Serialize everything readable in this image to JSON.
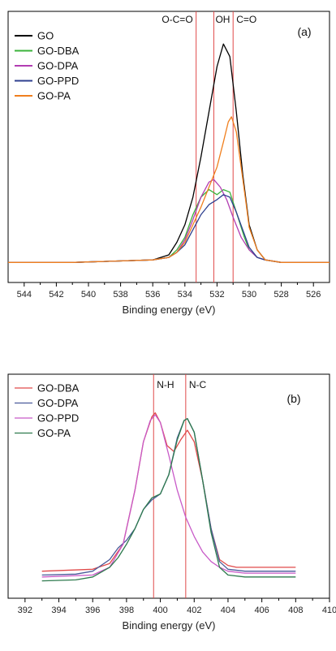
{
  "chart_data": [
    {
      "type": "line",
      "panel_label": "(a)",
      "xlabel": "Binding energy (eV)",
      "ylabel": "",
      "xlim": [
        545,
        525
      ],
      "ylim": [
        -0.08,
        1.0
      ],
      "x_reversed": true,
      "x_ticks": [
        "544",
        "542",
        "540",
        "538",
        "536",
        "534",
        "532",
        "530",
        "528",
        "526"
      ],
      "legend_position": "top-left",
      "reference_lines": [
        {
          "label": "O-C=O",
          "x": 533.3
        },
        {
          "label": "OH",
          "x": 532.2
        },
        {
          "label": "C=O",
          "x": 531.0
        }
      ],
      "series": [
        {
          "name": "GO",
          "color": "#000000",
          "points": [
            [
              545,
              0
            ],
            [
              541,
              0
            ],
            [
              536,
              0.01
            ],
            [
              535,
              0.03
            ],
            [
              534.5,
              0.08
            ],
            [
              534,
              0.15
            ],
            [
              533.5,
              0.26
            ],
            [
              533,
              0.42
            ],
            [
              532.5,
              0.6
            ],
            [
              532,
              0.78
            ],
            [
              531.6,
              0.87
            ],
            [
              531.2,
              0.82
            ],
            [
              530.8,
              0.6
            ],
            [
              530.4,
              0.35
            ],
            [
              530,
              0.15
            ],
            [
              529.5,
              0.05
            ],
            [
              529,
              0.01
            ],
            [
              528,
              0
            ],
            [
              525,
              0
            ]
          ]
        },
        {
          "name": "GO-DBA",
          "color": "#3bb33b",
          "points": [
            [
              545,
              0
            ],
            [
              541,
              0
            ],
            [
              536,
              0.01
            ],
            [
              535,
              0.02
            ],
            [
              534.5,
              0.05
            ],
            [
              534,
              0.1
            ],
            [
              533.5,
              0.19
            ],
            [
              533,
              0.26
            ],
            [
              532.5,
              0.29
            ],
            [
              532,
              0.27
            ],
            [
              531.6,
              0.29
            ],
            [
              531.2,
              0.28
            ],
            [
              530.8,
              0.2
            ],
            [
              530.3,
              0.1
            ],
            [
              530,
              0.05
            ],
            [
              529.5,
              0.02
            ],
            [
              529,
              0.01
            ],
            [
              528,
              0
            ],
            [
              525,
              0
            ]
          ]
        },
        {
          "name": "GO-DPA",
          "color": "#b23db2",
          "points": [
            [
              545,
              0
            ],
            [
              541,
              0
            ],
            [
              536,
              0.01
            ],
            [
              535,
              0.02
            ],
            [
              534.5,
              0.04
            ],
            [
              534,
              0.09
            ],
            [
              533.5,
              0.17
            ],
            [
              533,
              0.26
            ],
            [
              532.5,
              0.32
            ],
            [
              532.2,
              0.33
            ],
            [
              531.8,
              0.3
            ],
            [
              531.4,
              0.25
            ],
            [
              531,
              0.18
            ],
            [
              530.5,
              0.1
            ],
            [
              530,
              0.05
            ],
            [
              529.5,
              0.02
            ],
            [
              529,
              0.01
            ],
            [
              528,
              0
            ],
            [
              525,
              0
            ]
          ]
        },
        {
          "name": "GO-PPD",
          "color": "#2e3f8f",
          "points": [
            [
              545,
              0
            ],
            [
              541,
              0
            ],
            [
              536,
              0.01
            ],
            [
              535,
              0.02
            ],
            [
              534.5,
              0.04
            ],
            [
              534,
              0.07
            ],
            [
              533.5,
              0.13
            ],
            [
              533,
              0.19
            ],
            [
              532.5,
              0.23
            ],
            [
              532,
              0.25
            ],
            [
              531.6,
              0.27
            ],
            [
              531.2,
              0.26
            ],
            [
              530.8,
              0.2
            ],
            [
              530.4,
              0.13
            ],
            [
              530,
              0.06
            ],
            [
              529.5,
              0.02
            ],
            [
              529,
              0.01
            ],
            [
              528,
              0
            ],
            [
              525,
              0
            ]
          ]
        },
        {
          "name": "GO-PA",
          "color": "#f07f1e",
          "points": [
            [
              545,
              0
            ],
            [
              541,
              0
            ],
            [
              536,
              0.01
            ],
            [
              535,
              0.02
            ],
            [
              534.5,
              0.04
            ],
            [
              534,
              0.08
            ],
            [
              533.5,
              0.15
            ],
            [
              533,
              0.22
            ],
            [
              532.5,
              0.3
            ],
            [
              532,
              0.38
            ],
            [
              531.6,
              0.48
            ],
            [
              531.3,
              0.56
            ],
            [
              531.1,
              0.58
            ],
            [
              530.8,
              0.52
            ],
            [
              530.5,
              0.38
            ],
            [
              530.2,
              0.24
            ],
            [
              530,
              0.14
            ],
            [
              529.5,
              0.05
            ],
            [
              529,
              0.01
            ],
            [
              528,
              0
            ],
            [
              525,
              0
            ]
          ]
        }
      ]
    },
    {
      "type": "line",
      "panel_label": "(b)",
      "xlabel": "Binding energy (eV)",
      "ylabel": "",
      "xlim": [
        391,
        410
      ],
      "ylim": [
        -0.06,
        1.1
      ],
      "x_reversed": false,
      "x_ticks": [
        "392",
        "394",
        "396",
        "398",
        "400",
        "402",
        "404",
        "406",
        "408",
        "410"
      ],
      "legend_position": "top-left",
      "reference_lines": [
        {
          "label": "N-H",
          "x": 399.6
        },
        {
          "label": "N-C",
          "x": 401.5
        }
      ],
      "series": [
        {
          "name": "GO-DBA",
          "color": "#e04a4a",
          "points": [
            [
              393,
              0.08
            ],
            [
              396,
              0.09
            ],
            [
              397,
              0.12
            ],
            [
              397.8,
              0.22
            ],
            [
              398.5,
              0.5
            ],
            [
              399,
              0.75
            ],
            [
              399.5,
              0.88
            ],
            [
              399.7,
              0.9
            ],
            [
              400,
              0.85
            ],
            [
              400.4,
              0.73
            ],
            [
              400.8,
              0.7
            ],
            [
              401.2,
              0.76
            ],
            [
              401.6,
              0.81
            ],
            [
              402,
              0.75
            ],
            [
              402.5,
              0.55
            ],
            [
              403,
              0.3
            ],
            [
              403.5,
              0.14
            ],
            [
              404,
              0.11
            ],
            [
              404.5,
              0.1
            ],
            [
              408,
              0.1
            ]
          ]
        },
        {
          "name": "GO-DPA",
          "color": "#4a5a9a",
          "points": [
            [
              393,
              0.06
            ],
            [
              395,
              0.065
            ],
            [
              396,
              0.08
            ],
            [
              397,
              0.14
            ],
            [
              397.5,
              0.2
            ],
            [
              398,
              0.24
            ],
            [
              398.5,
              0.3
            ],
            [
              399,
              0.4
            ],
            [
              399.5,
              0.45
            ],
            [
              400,
              0.48
            ],
            [
              400.5,
              0.58
            ],
            [
              401,
              0.77
            ],
            [
              401.4,
              0.86
            ],
            [
              401.6,
              0.87
            ],
            [
              402,
              0.8
            ],
            [
              402.5,
              0.55
            ],
            [
              403,
              0.3
            ],
            [
              403.5,
              0.13
            ],
            [
              404,
              0.09
            ],
            [
              405,
              0.08
            ],
            [
              408,
              0.08
            ]
          ]
        },
        {
          "name": "GO-PPD",
          "color": "#c85ac8",
          "points": [
            [
              393,
              0.05
            ],
            [
              396,
              0.06
            ],
            [
              397,
              0.1
            ],
            [
              397.8,
              0.22
            ],
            [
              398.5,
              0.5
            ],
            [
              399,
              0.75
            ],
            [
              399.4,
              0.86
            ],
            [
              399.7,
              0.89
            ],
            [
              400,
              0.85
            ],
            [
              400.5,
              0.68
            ],
            [
              401,
              0.5
            ],
            [
              401.5,
              0.36
            ],
            [
              402,
              0.26
            ],
            [
              402.5,
              0.18
            ],
            [
              403,
              0.13
            ],
            [
              403.5,
              0.1
            ],
            [
              404,
              0.08
            ],
            [
              405,
              0.07
            ],
            [
              408,
              0.07
            ]
          ]
        },
        {
          "name": "GO-PA",
          "color": "#2e7a4e",
          "points": [
            [
              393,
              0.03
            ],
            [
              395,
              0.035
            ],
            [
              396,
              0.05
            ],
            [
              397,
              0.1
            ],
            [
              397.5,
              0.15
            ],
            [
              398,
              0.22
            ],
            [
              398.5,
              0.3
            ],
            [
              399,
              0.4
            ],
            [
              399.5,
              0.46
            ],
            [
              400,
              0.48
            ],
            [
              400.5,
              0.58
            ],
            [
              401,
              0.76
            ],
            [
              401.4,
              0.86
            ],
            [
              401.6,
              0.87
            ],
            [
              402,
              0.8
            ],
            [
              402.5,
              0.55
            ],
            [
              403,
              0.28
            ],
            [
              403.5,
              0.1
            ],
            [
              404,
              0.06
            ],
            [
              405,
              0.05
            ],
            [
              408,
              0.05
            ]
          ]
        }
      ]
    }
  ]
}
